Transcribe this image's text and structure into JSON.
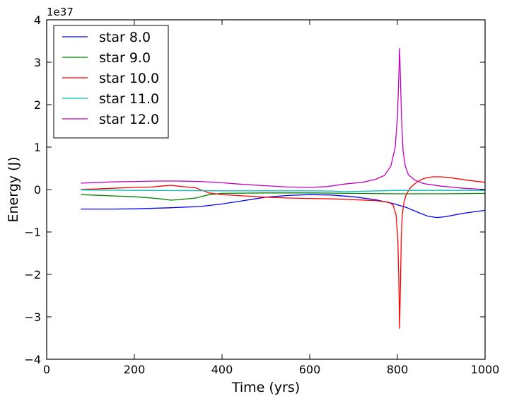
{
  "chart_data": {
    "type": "line",
    "title": "",
    "xlabel": "Time (yrs)",
    "ylabel": "Energy (J)",
    "y_offset_label": "1e37",
    "xlim": [
      0,
      1000
    ],
    "ylim": [
      -4,
      4
    ],
    "x_ticks": [
      0,
      200,
      400,
      600,
      800,
      1000
    ],
    "y_ticks": [
      -4,
      -3,
      -2,
      -1,
      0,
      1,
      2,
      3,
      4
    ],
    "x_tick_labels": [
      "0",
      "200",
      "400",
      "600",
      "800",
      "1000"
    ],
    "y_tick_labels": [
      "−4",
      "−3",
      "−2",
      "−1",
      "0",
      "1",
      "2",
      "3",
      "4"
    ],
    "grid": false,
    "legend_position": "top-left",
    "series": [
      {
        "name": "star 8.0",
        "color": "#0000ff",
        "points": [
          [
            78,
            -0.46
          ],
          [
            150,
            -0.46
          ],
          [
            200,
            -0.455
          ],
          [
            280,
            -0.43
          ],
          [
            350,
            -0.4
          ],
          [
            400,
            -0.34
          ],
          [
            450,
            -0.26
          ],
          [
            500,
            -0.18
          ],
          [
            550,
            -0.14
          ],
          [
            600,
            -0.12
          ],
          [
            650,
            -0.13
          ],
          [
            700,
            -0.17
          ],
          [
            750,
            -0.24
          ],
          [
            790,
            -0.33
          ],
          [
            820,
            -0.42
          ],
          [
            850,
            -0.55
          ],
          [
            870,
            -0.63
          ],
          [
            890,
            -0.66
          ],
          [
            910,
            -0.64
          ],
          [
            950,
            -0.56
          ],
          [
            1000,
            -0.49
          ]
        ]
      },
      {
        "name": "star 9.0",
        "color": "#008000",
        "points": [
          [
            78,
            -0.12
          ],
          [
            150,
            -0.15
          ],
          [
            200,
            -0.17
          ],
          [
            240,
            -0.2
          ],
          [
            260,
            -0.22
          ],
          [
            283,
            -0.25
          ],
          [
            300,
            -0.24
          ],
          [
            340,
            -0.2
          ],
          [
            370,
            -0.12
          ],
          [
            400,
            -0.09
          ],
          [
            500,
            -0.08
          ],
          [
            600,
            -0.08
          ],
          [
            700,
            -0.09
          ],
          [
            800,
            -0.1
          ],
          [
            900,
            -0.1
          ],
          [
            1000,
            -0.09
          ]
        ]
      },
      {
        "name": "star 10.0",
        "color": "#ff0000",
        "points": [
          [
            78,
            0.0
          ],
          [
            150,
            0.03
          ],
          [
            200,
            0.05
          ],
          [
            240,
            0.06
          ],
          [
            260,
            0.08
          ],
          [
            283,
            0.1
          ],
          [
            300,
            0.08
          ],
          [
            340,
            0.04
          ],
          [
            370,
            -0.08
          ],
          [
            400,
            -0.12
          ],
          [
            450,
            -0.15
          ],
          [
            500,
            -0.18
          ],
          [
            550,
            -0.2
          ],
          [
            600,
            -0.21
          ],
          [
            650,
            -0.22
          ],
          [
            700,
            -0.24
          ],
          [
            750,
            -0.26
          ],
          [
            780,
            -0.3
          ],
          [
            790,
            -0.36
          ],
          [
            797,
            -0.6
          ],
          [
            801,
            -1.2
          ],
          [
            803,
            -2.0
          ],
          [
            805,
            -3.28
          ],
          [
            807,
            -2.2
          ],
          [
            809,
            -1.1
          ],
          [
            811,
            -0.6
          ],
          [
            815,
            -0.3
          ],
          [
            820,
            -0.12
          ],
          [
            830,
            0.05
          ],
          [
            845,
            0.18
          ],
          [
            860,
            0.26
          ],
          [
            880,
            0.3
          ],
          [
            900,
            0.3
          ],
          [
            920,
            0.28
          ],
          [
            960,
            0.22
          ],
          [
            1000,
            0.17
          ]
        ]
      },
      {
        "name": "star 11.0",
        "color": "#00bfbf",
        "points": [
          [
            78,
            -0.01
          ],
          [
            200,
            -0.02
          ],
          [
            300,
            -0.025
          ],
          [
            400,
            -0.03
          ],
          [
            500,
            -0.03
          ],
          [
            600,
            -0.03
          ],
          [
            650,
            -0.035
          ],
          [
            680,
            -0.05
          ],
          [
            720,
            -0.04
          ],
          [
            760,
            -0.03
          ],
          [
            800,
            -0.02
          ],
          [
            900,
            -0.02
          ],
          [
            1000,
            -0.02
          ]
        ]
      },
      {
        "name": "star 12.0",
        "color": "#bf00bf",
        "points": [
          [
            78,
            0.15
          ],
          [
            150,
            0.18
          ],
          [
            200,
            0.19
          ],
          [
            250,
            0.2
          ],
          [
            300,
            0.2
          ],
          [
            350,
            0.19
          ],
          [
            400,
            0.16
          ],
          [
            450,
            0.12
          ],
          [
            500,
            0.09
          ],
          [
            550,
            0.06
          ],
          [
            600,
            0.05
          ],
          [
            640,
            0.07
          ],
          [
            660,
            0.1
          ],
          [
            680,
            0.13
          ],
          [
            720,
            0.17
          ],
          [
            750,
            0.24
          ],
          [
            770,
            0.33
          ],
          [
            785,
            0.55
          ],
          [
            795,
            1.0
          ],
          [
            800,
            1.7
          ],
          [
            803,
            2.6
          ],
          [
            805,
            3.33
          ],
          [
            807,
            2.6
          ],
          [
            810,
            1.5
          ],
          [
            813,
            0.9
          ],
          [
            818,
            0.55
          ],
          [
            825,
            0.35
          ],
          [
            840,
            0.22
          ],
          [
            860,
            0.14
          ],
          [
            900,
            0.08
          ],
          [
            950,
            0.03
          ],
          [
            1000,
            0.0
          ]
        ]
      }
    ]
  }
}
